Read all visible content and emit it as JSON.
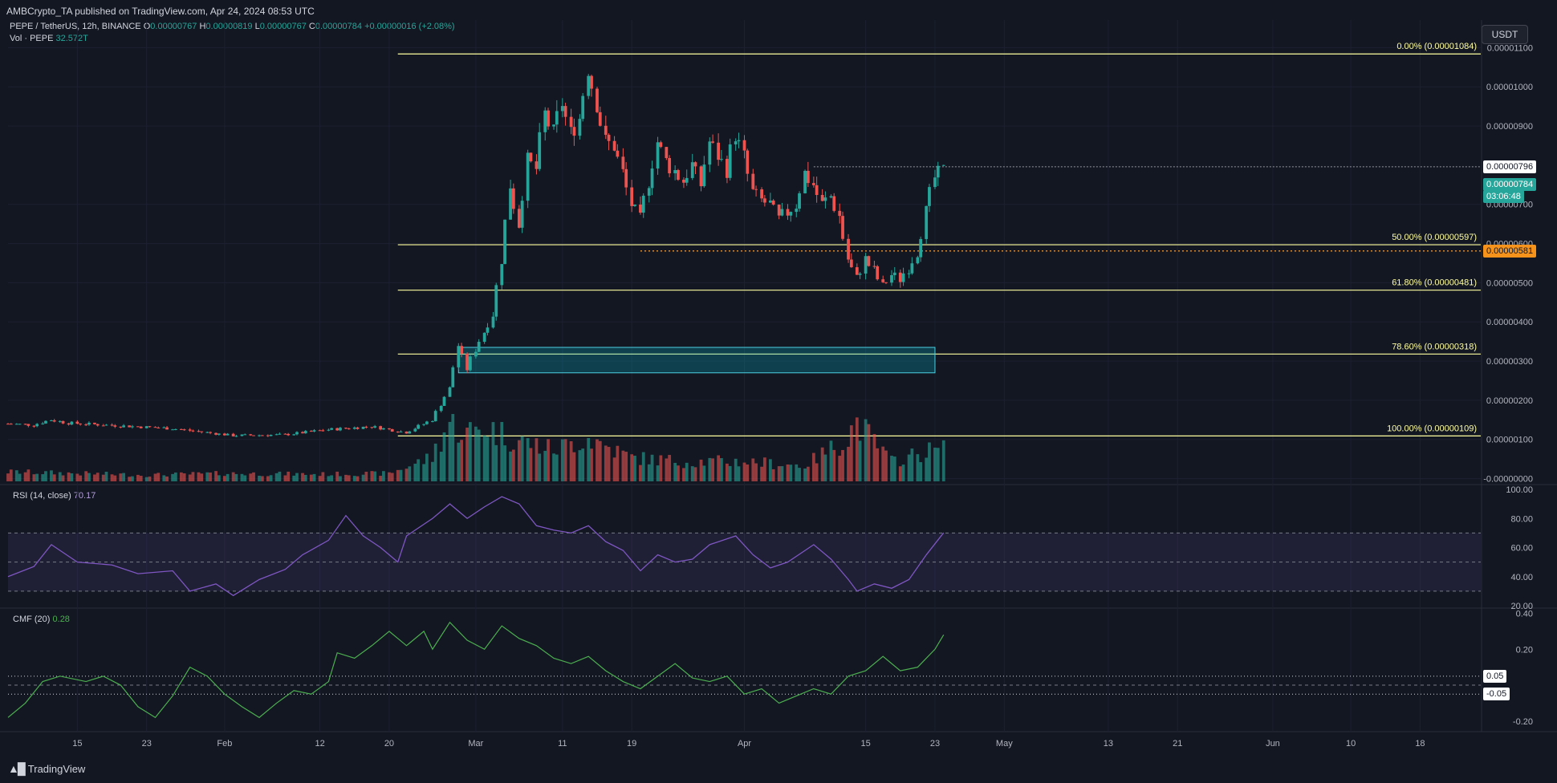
{
  "header": {
    "publish_line": "AMBCrypto_TA published on TradingView.com, Apr 24, 2024 08:53 UTC"
  },
  "legend": {
    "symbol": "PEPE / TetherUS, 12h, BINANCE",
    "o_label": "O",
    "o_value": "0.00000767",
    "h_label": "H",
    "h_value": "0.00000819",
    "l_label": "L",
    "l_value": "0.00000767",
    "c_label": "C",
    "c_value": "0.00000784",
    "change": "+0.00000016 (+2.08%)",
    "vol_label": "Vol · PEPE",
    "vol_value": "32.572T"
  },
  "currency": "USDT",
  "brand": "TradingView",
  "colors": {
    "bg": "#131722",
    "up": "#26a69a",
    "down": "#ef5350",
    "fib": "#ffffa0",
    "rsi": "#7e57c2",
    "cmf": "#4caf50",
    "orange": "#f7931a"
  },
  "chart_data": [
    {
      "type": "candlestick",
      "title": "PEPE / TetherUS, 12h, BINANCE",
      "x_tick_labels": [
        "15",
        "23",
        "Feb",
        "12",
        "20",
        "Mar",
        "11",
        "19",
        "Apr",
        "15",
        "23",
        "May",
        "13",
        "21",
        "Jun",
        "10",
        "18"
      ],
      "y_tick_labels": [
        "0.00001100",
        "0.00001000",
        "0.00000900",
        "0.00000700",
        "0.00000600",
        "0.00000500",
        "0.00000400",
        "0.00000300",
        "0.00000200",
        "0.00000100",
        "-0.00000000"
      ],
      "ylim": [
        -7e-08,
        1.15e-05
      ],
      "x_range": [
        "2024-01-07",
        "2024-06-25"
      ],
      "price_path": [
        [
          "2024-01-07",
          1.4e-06
        ],
        [
          "2024-01-10",
          1.37e-06
        ],
        [
          "2024-01-12",
          1.5e-06
        ],
        [
          "2024-01-14",
          1.42e-06
        ],
        [
          "2024-01-20",
          1.35e-06
        ],
        [
          "2024-01-26",
          1.28e-06
        ],
        [
          "2024-02-02",
          1.1e-06
        ],
        [
          "2024-02-08",
          1.12e-06
        ],
        [
          "2024-02-13",
          1.25e-06
        ],
        [
          "2024-02-18",
          1.33e-06
        ],
        [
          "2024-02-22",
          1.18e-06
        ],
        [
          "2024-02-25",
          1.5e-06
        ],
        [
          "2024-02-27",
          2.3e-06
        ],
        [
          "2024-02-28",
          3.4e-06
        ],
        [
          "2024-02-29",
          2.8e-06
        ],
        [
          "2024-03-01",
          3.3e-06
        ],
        [
          "2024-03-03",
          4.2e-06
        ],
        [
          "2024-03-04",
          5.6e-06
        ],
        [
          "2024-03-05",
          7.5e-06
        ],
        [
          "2024-03-06",
          6.5e-06
        ],
        [
          "2024-03-07",
          8.1e-06
        ],
        [
          "2024-03-08",
          7.9e-06
        ],
        [
          "2024-03-09",
          9.3e-06
        ],
        [
          "2024-03-10",
          8.8e-06
        ],
        [
          "2024-03-11",
          9.6e-06
        ],
        [
          "2024-03-12",
          8.8e-06
        ],
        [
          "2024-03-13",
          9.2e-06
        ],
        [
          "2024-03-14",
          1.05e-05
        ],
        [
          "2024-03-15",
          9.6e-06
        ],
        [
          "2024-03-16",
          8.6e-06
        ],
        [
          "2024-03-17",
          8.5e-06
        ],
        [
          "2024-03-18",
          7.8e-06
        ],
        [
          "2024-03-19",
          7e-06
        ],
        [
          "2024-03-20",
          6.6e-06
        ],
        [
          "2024-03-22",
          8.6e-06
        ],
        [
          "2024-03-23",
          8.1e-06
        ],
        [
          "2024-03-25",
          7.6e-06
        ],
        [
          "2024-03-26",
          8e-06
        ],
        [
          "2024-03-27",
          7.5e-06
        ],
        [
          "2024-03-28",
          8.6e-06
        ],
        [
          "2024-03-30",
          7.9e-06
        ],
        [
          "2024-03-31",
          8.8e-06
        ],
        [
          "2024-04-01",
          8.2e-06
        ],
        [
          "2024-04-02",
          7.3e-06
        ],
        [
          "2024-04-03",
          7.1e-06
        ],
        [
          "2024-04-04",
          7e-06
        ],
        [
          "2024-04-05",
          6.6e-06
        ],
        [
          "2024-04-07",
          7e-06
        ],
        [
          "2024-04-08",
          7.8e-06
        ],
        [
          "2024-04-09",
          7.5e-06
        ],
        [
          "2024-04-10",
          7e-06
        ],
        [
          "2024-04-11",
          7.2e-06
        ],
        [
          "2024-04-12",
          6.7e-06
        ],
        [
          "2024-04-13",
          5.6e-06
        ],
        [
          "2024-04-14",
          5.1e-06
        ],
        [
          "2024-04-15",
          5.6e-06
        ],
        [
          "2024-04-16",
          5.3e-06
        ],
        [
          "2024-04-17",
          4.9e-06
        ],
        [
          "2024-04-18",
          5.2e-06
        ],
        [
          "2024-04-19",
          5.1e-06
        ],
        [
          "2024-04-20",
          5.4e-06
        ],
        [
          "2024-04-21",
          5.8e-06
        ],
        [
          "2024-04-22",
          6.8e-06
        ],
        [
          "2024-04-23",
          7.67e-06
        ],
        [
          "2024-04-24",
          7.84e-06
        ]
      ],
      "volume_relative": [
        [
          "2024-01-07",
          0.12
        ],
        [
          "2024-01-15",
          0.1
        ],
        [
          "2024-01-23",
          0.08
        ],
        [
          "2024-02-01",
          0.1
        ],
        [
          "2024-02-12",
          0.09
        ],
        [
          "2024-02-20",
          0.1
        ],
        [
          "2024-02-25",
          0.3
        ],
        [
          "2024-02-27",
          0.75
        ],
        [
          "2024-02-29",
          0.6
        ],
        [
          "2024-03-02",
          0.7
        ],
        [
          "2024-03-05",
          0.55
        ],
        [
          "2024-03-10",
          0.4
        ],
        [
          "2024-03-14",
          0.55
        ],
        [
          "2024-03-19",
          0.3
        ],
        [
          "2024-03-25",
          0.25
        ],
        [
          "2024-04-01",
          0.25
        ],
        [
          "2024-04-08",
          0.2
        ],
        [
          "2024-04-13",
          0.55
        ],
        [
          "2024-04-14",
          0.75
        ],
        [
          "2024-04-18",
          0.25
        ],
        [
          "2024-04-23",
          0.4
        ]
      ],
      "current_price_label": "0.00000784",
      "countdown_label": "03:06:48",
      "last_high_label": "0.00000796",
      "support_price_label": "0.00000581",
      "fib_levels": [
        {
          "label": "0.00% (0.00001084)",
          "price": 1.084e-05
        },
        {
          "label": "50.00% (0.00000597)",
          "price": 5.97e-06
        },
        {
          "label": "61.80% (0.00000481)",
          "price": 4.81e-06
        },
        {
          "label": "78.60% (0.00000318)",
          "price": 3.18e-06
        },
        {
          "label": "100.00% (0.00000109)",
          "price": 1.09e-06
        }
      ],
      "demand_zone": {
        "from": "2024-02-28",
        "to": "2024-04-23",
        "low": 2.7e-06,
        "high": 3.35e-06
      },
      "dotted_resistance": {
        "from": "2024-04-09",
        "price": 7.96e-06
      },
      "dotted_support": {
        "from": "2024-03-20",
        "price": 5.81e-06
      }
    },
    {
      "type": "line",
      "title": "RSI (14, close)",
      "value_label": "70.17",
      "y_tick_labels": [
        "100.00",
        "80.00",
        "60.00",
        "40.00",
        "20.00"
      ],
      "ylim": [
        20,
        100
      ],
      "band": [
        30,
        70
      ],
      "series": [
        [
          "2024-01-07",
          40
        ],
        [
          "2024-01-10",
          47
        ],
        [
          "2024-01-12",
          62
        ],
        [
          "2024-01-15",
          50
        ],
        [
          "2024-01-19",
          48
        ],
        [
          "2024-01-22",
          42
        ],
        [
          "2024-01-26",
          44
        ],
        [
          "2024-01-28",
          30
        ],
        [
          "2024-01-31",
          35
        ],
        [
          "2024-02-02",
          27
        ],
        [
          "2024-02-05",
          38
        ],
        [
          "2024-02-08",
          45
        ],
        [
          "2024-02-10",
          55
        ],
        [
          "2024-02-13",
          65
        ],
        [
          "2024-02-15",
          82
        ],
        [
          "2024-02-17",
          68
        ],
        [
          "2024-02-19",
          60
        ],
        [
          "2024-02-21",
          50
        ],
        [
          "2024-02-22",
          68
        ],
        [
          "2024-02-25",
          80
        ],
        [
          "2024-02-27",
          90
        ],
        [
          "2024-02-29",
          80
        ],
        [
          "2024-03-02",
          88
        ],
        [
          "2024-03-04",
          95
        ],
        [
          "2024-03-06",
          90
        ],
        [
          "2024-03-08",
          75
        ],
        [
          "2024-03-10",
          72
        ],
        [
          "2024-03-12",
          70
        ],
        [
          "2024-03-14",
          75
        ],
        [
          "2024-03-16",
          64
        ],
        [
          "2024-03-18",
          58
        ],
        [
          "2024-03-20",
          44
        ],
        [
          "2024-03-22",
          55
        ],
        [
          "2024-03-24",
          50
        ],
        [
          "2024-03-26",
          52
        ],
        [
          "2024-03-28",
          62
        ],
        [
          "2024-03-31",
          68
        ],
        [
          "2024-04-02",
          55
        ],
        [
          "2024-04-04",
          46
        ],
        [
          "2024-04-06",
          50
        ],
        [
          "2024-04-09",
          62
        ],
        [
          "2024-04-11",
          52
        ],
        [
          "2024-04-13",
          38
        ],
        [
          "2024-04-14",
          30
        ],
        [
          "2024-04-16",
          35
        ],
        [
          "2024-04-18",
          32
        ],
        [
          "2024-04-20",
          38
        ],
        [
          "2024-04-22",
          55
        ],
        [
          "2024-04-24",
          70.17
        ]
      ]
    },
    {
      "type": "line",
      "title": "CMF (20)",
      "value_label": "0.28",
      "y_tick_labels": [
        "0.40",
        "0.20",
        "-0.20"
      ],
      "ylim": [
        -0.25,
        0.42
      ],
      "reference_lines": [
        {
          "label": "0.05",
          "value": 0.05
        },
        {
          "label": "-0.05",
          "value": -0.05
        }
      ],
      "series": [
        [
          "2024-01-07",
          -0.18
        ],
        [
          "2024-01-09",
          -0.1
        ],
        [
          "2024-01-11",
          0.02
        ],
        [
          "2024-01-13",
          0.05
        ],
        [
          "2024-01-16",
          0.02
        ],
        [
          "2024-01-18",
          0.05
        ],
        [
          "2024-01-20",
          0.0
        ],
        [
          "2024-01-22",
          -0.12
        ],
        [
          "2024-01-24",
          -0.18
        ],
        [
          "2024-01-26",
          -0.06
        ],
        [
          "2024-01-28",
          0.1
        ],
        [
          "2024-01-30",
          0.05
        ],
        [
          "2024-02-01",
          -0.05
        ],
        [
          "2024-02-03",
          -0.12
        ],
        [
          "2024-02-05",
          -0.18
        ],
        [
          "2024-02-07",
          -0.1
        ],
        [
          "2024-02-09",
          -0.03
        ],
        [
          "2024-02-11",
          -0.05
        ],
        [
          "2024-02-13",
          0.02
        ],
        [
          "2024-02-14",
          0.18
        ],
        [
          "2024-02-16",
          0.15
        ],
        [
          "2024-02-18",
          0.22
        ],
        [
          "2024-02-20",
          0.3
        ],
        [
          "2024-02-22",
          0.22
        ],
        [
          "2024-02-24",
          0.3
        ],
        [
          "2024-02-25",
          0.2
        ],
        [
          "2024-02-27",
          0.35
        ],
        [
          "2024-02-29",
          0.25
        ],
        [
          "2024-03-02",
          0.2
        ],
        [
          "2024-03-04",
          0.33
        ],
        [
          "2024-03-06",
          0.26
        ],
        [
          "2024-03-08",
          0.22
        ],
        [
          "2024-03-10",
          0.15
        ],
        [
          "2024-03-12",
          0.12
        ],
        [
          "2024-03-14",
          0.16
        ],
        [
          "2024-03-16",
          0.08
        ],
        [
          "2024-03-18",
          0.02
        ],
        [
          "2024-03-20",
          -0.02
        ],
        [
          "2024-03-22",
          0.05
        ],
        [
          "2024-03-24",
          0.12
        ],
        [
          "2024-03-26",
          0.04
        ],
        [
          "2024-03-28",
          0.02
        ],
        [
          "2024-03-30",
          0.05
        ],
        [
          "2024-04-01",
          -0.05
        ],
        [
          "2024-04-03",
          -0.02
        ],
        [
          "2024-04-05",
          -0.1
        ],
        [
          "2024-04-07",
          -0.06
        ],
        [
          "2024-04-09",
          -0.02
        ],
        [
          "2024-04-11",
          -0.05
        ],
        [
          "2024-04-13",
          0.05
        ],
        [
          "2024-04-15",
          0.08
        ],
        [
          "2024-04-17",
          0.16
        ],
        [
          "2024-04-19",
          0.08
        ],
        [
          "2024-04-21",
          0.1
        ],
        [
          "2024-04-23",
          0.2
        ],
        [
          "2024-04-24",
          0.28
        ]
      ]
    }
  ]
}
